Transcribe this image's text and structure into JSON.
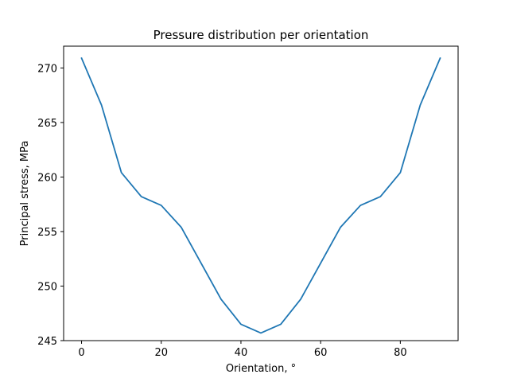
{
  "chart_data": {
    "type": "line",
    "title": "Pressure distribution per orientation",
    "xlabel": "Orientation, °",
    "ylabel": "Principal stress, MPa",
    "xlim": [
      -4.5,
      94.5
    ],
    "ylim": [
      245.0,
      272.0
    ],
    "xticks": [
      0,
      20,
      40,
      60,
      80
    ],
    "yticks": [
      245,
      250,
      255,
      260,
      265,
      270
    ],
    "grid": false,
    "legend": "none",
    "series": [
      {
        "color": "#1f77b4",
        "x": [
          0,
          5,
          10,
          15,
          20,
          25,
          30,
          35,
          40,
          45,
          50,
          55,
          60,
          65,
          70,
          75,
          80,
          85,
          90
        ],
        "y": [
          270.9,
          266.6,
          260.4,
          258.2,
          257.4,
          255.4,
          252.1,
          248.8,
          246.5,
          245.7,
          246.5,
          248.8,
          252.1,
          255.4,
          257.4,
          258.2,
          260.4,
          266.6,
          270.9
        ]
      }
    ]
  }
}
